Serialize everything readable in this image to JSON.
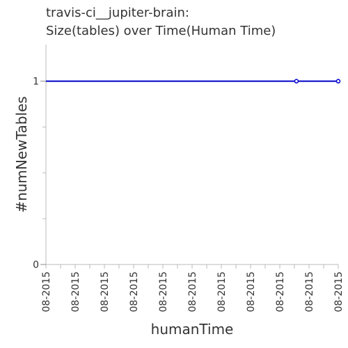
{
  "chart_data": {
    "type": "line",
    "title_lines": [
      "travis-ci__jupiter-brain:",
      "Size(tables) over Time(Human Time)"
    ],
    "xlabel": "humanTime",
    "ylabel": "#numNewTables",
    "x_tick_labels": [
      "08-2015",
      "08-2015",
      "08-2015",
      "08-2015",
      "08-2015",
      "08-2015",
      "08-2015",
      "08-2015",
      "08-2015",
      "08-2015",
      "08-2015",
      "08-2015",
      "08-2015",
      "08-2015",
      "08-2015",
      "08-2015",
      "08-2015",
      "08-2015",
      "08-2015",
      "08-2015",
      "08-2015"
    ],
    "y_ticks": [
      0,
      1
    ],
    "ylim": [
      0,
      1.2
    ],
    "xlim": [
      0,
      1
    ],
    "grid": false,
    "series": [
      {
        "color": "#0000cc",
        "x": [
          0,
          0.857,
          1
        ],
        "y": [
          1,
          1,
          1
        ],
        "markers": [
          1,
          2
        ]
      }
    ]
  }
}
